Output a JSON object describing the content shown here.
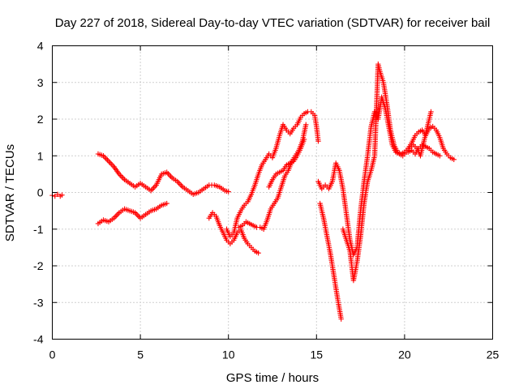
{
  "chart_data": {
    "type": "scatter",
    "title": "Day 227 of 2018, Sidereal Day-to-day VTEC variation (SDTVAR) for receiver bail",
    "xlabel": "GPS time / hours",
    "ylabel": "SDTVAR / TECUs",
    "xlim": [
      0,
      25
    ],
    "ylim": [
      -4,
      4
    ],
    "xticks": [
      "0",
      "5",
      "10",
      "15",
      "20",
      "25"
    ],
    "yticks": [
      "-4",
      "-3",
      "-2",
      "-1",
      "0",
      "1",
      "2",
      "3",
      "4"
    ],
    "grid": true,
    "marker": "plus",
    "color": "#ff0000",
    "series": [
      {
        "x": [
          0.0,
          0.15,
          0.3,
          0.45,
          0.55
        ],
        "y": [
          -0.08,
          -0.1,
          -0.05,
          -0.1,
          -0.07
        ]
      },
      {
        "x": [
          2.6,
          2.9,
          3.2,
          3.5,
          3.8,
          4.1,
          4.4,
          4.7,
          5.0,
          5.3,
          5.6,
          5.9,
          6.2,
          6.5,
          6.8,
          7.1,
          7.4,
          7.7,
          8.0,
          8.3,
          8.6,
          8.9,
          9.2,
          9.5,
          9.8,
          10.0
        ],
        "y": [
          1.05,
          1.0,
          0.85,
          0.7,
          0.5,
          0.35,
          0.25,
          0.15,
          0.25,
          0.15,
          0.05,
          0.2,
          0.5,
          0.55,
          0.4,
          0.3,
          0.15,
          0.05,
          -0.05,
          0.0,
          0.1,
          0.2,
          0.2,
          0.15,
          0.05,
          0.02
        ]
      },
      {
        "x": [
          2.6,
          2.9,
          3.2,
          3.5,
          3.8,
          4.1,
          4.4,
          4.7,
          5.0,
          5.3,
          5.6,
          5.9,
          6.2,
          6.5
        ],
        "y": [
          -0.85,
          -0.75,
          -0.8,
          -0.7,
          -0.55,
          -0.45,
          -0.5,
          -0.55,
          -0.7,
          -0.6,
          -0.5,
          -0.45,
          -0.35,
          -0.3
        ]
      },
      {
        "x": [
          8.9,
          9.1,
          9.3,
          9.5,
          9.7,
          9.9,
          10.1,
          10.3,
          10.5,
          10.7,
          10.9,
          11.1,
          11.3,
          11.5,
          11.7
        ],
        "y": [
          -0.7,
          -0.55,
          -0.65,
          -0.9,
          -1.1,
          -1.3,
          -1.4,
          -1.3,
          -1.1,
          -1.0,
          -1.25,
          -1.4,
          -1.5,
          -1.6,
          -1.65
        ]
      },
      {
        "x": [
          9.9,
          10.1,
          10.3,
          10.5,
          10.7,
          10.9,
          11.1,
          11.3,
          11.5,
          11.7,
          11.9,
          12.1,
          12.3,
          12.5,
          12.7,
          12.9,
          13.1,
          13.3,
          13.5,
          13.7,
          13.9,
          14.1,
          14.3,
          14.5,
          14.7,
          14.9,
          15.0,
          15.1
        ],
        "y": [
          -1.0,
          -1.2,
          -1.1,
          -0.7,
          -0.5,
          -0.35,
          -0.25,
          -0.05,
          0.2,
          0.5,
          0.75,
          0.9,
          1.05,
          0.95,
          1.2,
          1.55,
          1.85,
          1.7,
          1.6,
          1.75,
          1.85,
          2.05,
          2.15,
          2.2,
          2.2,
          2.1,
          1.8,
          1.4
        ]
      },
      {
        "x": [
          10.6,
          10.8,
          11.0,
          11.2,
          11.4,
          11.6,
          11.8,
          12.0,
          12.2,
          12.4,
          12.6,
          12.8,
          13.0,
          13.2,
          13.4,
          13.6,
          13.8,
          14.0,
          14.2,
          14.4
        ],
        "y": [
          -0.95,
          -0.9,
          -0.8,
          -0.85,
          -0.9,
          -0.95,
          -0.95,
          -1.0,
          -0.75,
          -0.45,
          -0.3,
          -0.15,
          0.15,
          0.45,
          0.6,
          0.85,
          1.0,
          1.15,
          1.4,
          1.85
        ]
      },
      {
        "x": [
          12.3,
          12.5,
          12.7,
          12.9,
          13.1,
          13.3,
          13.5,
          13.7,
          13.9,
          14.1,
          14.3
        ],
        "y": [
          0.15,
          0.35,
          0.5,
          0.55,
          0.6,
          0.75,
          0.8,
          0.85,
          1.0,
          1.2,
          1.45
        ]
      },
      {
        "x": [
          15.1,
          15.3,
          15.5,
          15.7,
          15.9,
          16.1,
          16.3,
          16.5,
          16.7,
          16.9,
          17.1,
          17.3,
          17.5,
          17.7,
          17.9,
          18.1,
          18.3,
          18.5,
          18.7,
          18.9,
          19.1,
          19.3,
          19.5,
          19.7,
          19.9,
          20.1,
          20.3,
          20.5,
          20.7,
          20.9,
          21.1,
          21.3,
          21.5
        ],
        "y": [
          0.3,
          0.1,
          0.2,
          0.1,
          0.3,
          0.8,
          0.6,
          0.1,
          -0.6,
          -1.3,
          -1.7,
          -1.5,
          -0.5,
          0.3,
          1.0,
          1.8,
          2.2,
          2.0,
          2.6,
          2.3,
          1.8,
          1.3,
          1.1,
          1.05,
          1.0,
          1.1,
          1.2,
          1.3,
          1.2,
          1.0,
          1.4,
          1.8,
          2.2
        ]
      },
      {
        "x": [
          15.2,
          15.4,
          15.6,
          15.8,
          16.0,
          16.2,
          16.4
        ],
        "y": [
          -0.3,
          -0.7,
          -1.2,
          -1.7,
          -2.3,
          -2.9,
          -3.45
        ]
      },
      {
        "x": [
          16.5,
          16.7,
          16.9,
          17.1,
          17.3,
          17.5,
          17.7,
          17.9,
          18.1,
          18.3,
          18.5,
          18.6,
          18.8,
          19.0,
          19.2,
          19.4,
          19.6,
          19.8,
          20.0,
          20.2,
          20.4,
          20.6,
          20.8,
          21.0,
          21.2,
          21.4,
          21.6,
          21.8,
          22.0,
          22.2,
          22.4,
          22.6,
          22.8
        ],
        "y": [
          -1.0,
          -1.3,
          -1.6,
          -2.4,
          -1.9,
          -1.2,
          -0.3,
          0.3,
          0.6,
          1.0,
          3.5,
          3.3,
          3.0,
          2.4,
          1.7,
          1.3,
          1.1,
          1.05,
          1.1,
          1.2,
          1.35,
          1.55,
          1.65,
          1.7,
          1.55,
          1.75,
          1.8,
          1.7,
          1.5,
          1.2,
          1.05,
          0.95,
          0.9
        ]
      },
      {
        "x": [
          20.2,
          20.4,
          20.6,
          20.8,
          21.0,
          21.2,
          21.4,
          21.6,
          21.8,
          22.0
        ],
        "y": [
          1.1,
          1.15,
          1.05,
          1.2,
          1.3,
          1.25,
          1.2,
          1.1,
          1.05,
          1.0
        ]
      }
    ]
  }
}
